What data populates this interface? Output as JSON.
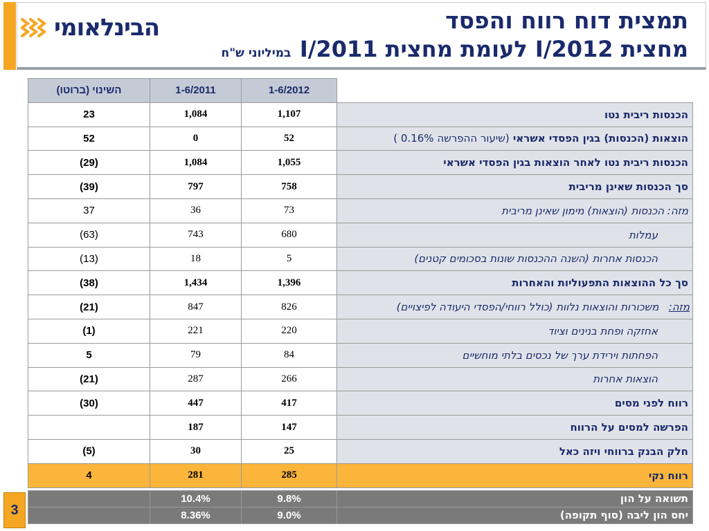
{
  "header": {
    "logo_text": "הבינלאומי",
    "title_line1": "תמצית דוח רווח והפסד",
    "title_line2": "מחצית I/2012 לעומת מחצית I/2011",
    "units": "במיליוני ש\"ח"
  },
  "page_number": "3",
  "table": {
    "columns": {
      "change": "השינוי (ברוטו)",
      "h2011": "1-6/2011",
      "h2012": "1-6/2012"
    },
    "rows": [
      {
        "label": "הכנסות ריבית נטו",
        "v2012": "1,107",
        "v2011": "1,084",
        "change": "23"
      },
      {
        "label": "הוצאות (הכנסות) בגין הפסדי אשראי",
        "label_extra": "(שיעור ההפרשה 0.16% )",
        "v2012": "52",
        "v2011": "0",
        "change": "52"
      },
      {
        "label": "הכנסות ריבית נטו לאחר הוצאות בגין הפסדי אשראי",
        "v2012": "1,055",
        "v2011": "1,084",
        "change": "(29)"
      },
      {
        "label": "סך הכנסות שאינן מריבית",
        "v2012": "758",
        "v2011": "797",
        "change": "(39)"
      },
      {
        "label": "מזה: הכנסות (הוצאות) מימון שאינן מריבית",
        "v2012": "73",
        "v2011": "36",
        "change": "37"
      },
      {
        "label": "עמלות",
        "v2012": "680",
        "v2011": "743",
        "change": "(63)"
      },
      {
        "label": "הכנסות אחרות (השנה ההכנסות שונות בסכומים קטנים)",
        "v2012": "5",
        "v2011": "18",
        "change": "(13)"
      },
      {
        "label": "סך כל ההוצאות התפעוליות והאחרות",
        "v2012": "1,396",
        "v2011": "1,434",
        "change": "(38)"
      },
      {
        "label_prefix": "מזה:",
        "label": "משכורות והוצאות נלוות (כולל רווחי/הפסדי היעודה לפיצויים)",
        "v2012": "826",
        "v2011": "847",
        "change": "(21)"
      },
      {
        "label": "אחזקה ופחת בנינים וציוד",
        "v2012": "220",
        "v2011": "221",
        "change": "(1)"
      },
      {
        "label": "הפחתות וירידת ערך של נכסים בלתי מוחשיים",
        "v2012": "84",
        "v2011": "79",
        "change": "5"
      },
      {
        "label": "הוצאות אחרות",
        "v2012": "266",
        "v2011": "287",
        "change": "(21)"
      },
      {
        "label": "רווח לפני מסים",
        "v2012": "417",
        "v2011": "447",
        "change": "(30)"
      },
      {
        "label": "הפרשה למסים על הרווח",
        "v2012": "147",
        "v2011": "187",
        "change": ""
      },
      {
        "label": "חלק הבנק ברווחי ויזה כאל",
        "v2012": "25",
        "v2011": "30",
        "change": "(5)"
      },
      {
        "label": "רווח נקי",
        "v2012": "285",
        "v2011": "281",
        "change": "4"
      }
    ],
    "ratios": [
      {
        "label": "תשואה על הון",
        "v2012": "9.8%",
        "v2011": "10.4%",
        "change": ""
      },
      {
        "label": "יחס הון ליבה  (סוף תקופה)",
        "v2012": "9.0%",
        "v2011": "8.36%",
        "change": ""
      }
    ]
  },
  "colors": {
    "accent_orange": "#f5a623",
    "net_row": "#fcb53b",
    "label_bg": "#dfe2e8",
    "header_bg": "#c5cbd6",
    "ratio_bg": "#7a7a7a",
    "brand_navy": "#1a2a6c"
  },
  "icons": {
    "logo": "bank-logo-icon"
  }
}
